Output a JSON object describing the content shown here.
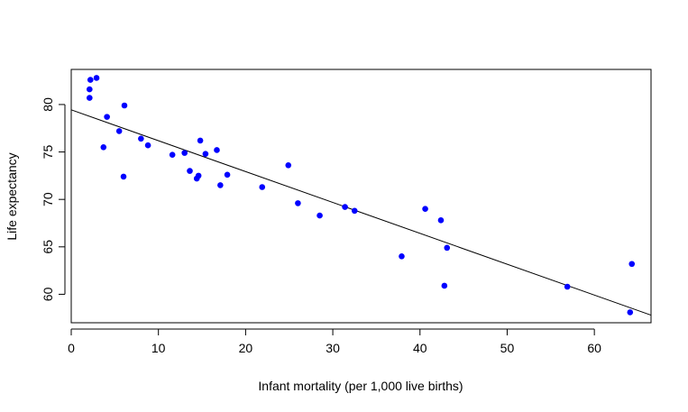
{
  "chart_data": {
    "type": "scatter",
    "title": "",
    "xlabel": "Infant mortality (per 1,000 live births)",
    "ylabel": "Life expectancy",
    "xlim": [
      0,
      66.5
    ],
    "ylim": [
      57,
      83.7
    ],
    "x_ticks": [
      0,
      10,
      20,
      30,
      40,
      50,
      60
    ],
    "y_ticks": [
      60,
      65,
      70,
      75,
      80
    ],
    "grid": false,
    "point_color": "#0000ff",
    "line_color": "#000000",
    "points": [
      {
        "x": 2.2,
        "y": 82.6
      },
      {
        "x": 2.9,
        "y": 82.8
      },
      {
        "x": 2.1,
        "y": 81.6
      },
      {
        "x": 2.1,
        "y": 80.7
      },
      {
        "x": 6.1,
        "y": 79.9
      },
      {
        "x": 4.1,
        "y": 78.7
      },
      {
        "x": 5.5,
        "y": 77.2
      },
      {
        "x": 8.0,
        "y": 76.4
      },
      {
        "x": 3.7,
        "y": 75.5
      },
      {
        "x": 8.8,
        "y": 75.7
      },
      {
        "x": 14.8,
        "y": 76.2
      },
      {
        "x": 16.7,
        "y": 75.2
      },
      {
        "x": 11.6,
        "y": 74.7
      },
      {
        "x": 13.0,
        "y": 74.9
      },
      {
        "x": 15.4,
        "y": 74.8
      },
      {
        "x": 13.6,
        "y": 73.0
      },
      {
        "x": 24.9,
        "y": 73.6
      },
      {
        "x": 6.0,
        "y": 72.4
      },
      {
        "x": 14.4,
        "y": 72.2
      },
      {
        "x": 14.6,
        "y": 72.5
      },
      {
        "x": 17.9,
        "y": 72.6
      },
      {
        "x": 17.1,
        "y": 71.5
      },
      {
        "x": 21.9,
        "y": 71.3
      },
      {
        "x": 26.0,
        "y": 69.6
      },
      {
        "x": 28.5,
        "y": 68.3
      },
      {
        "x": 31.4,
        "y": 69.2
      },
      {
        "x": 32.5,
        "y": 68.8
      },
      {
        "x": 40.6,
        "y": 69.0
      },
      {
        "x": 42.4,
        "y": 67.8
      },
      {
        "x": 43.1,
        "y": 64.9
      },
      {
        "x": 37.9,
        "y": 64.0
      },
      {
        "x": 42.8,
        "y": 60.9
      },
      {
        "x": 56.9,
        "y": 60.8
      },
      {
        "x": 64.3,
        "y": 63.2
      },
      {
        "x": 64.1,
        "y": 58.1
      }
    ],
    "regression_line": {
      "x": [
        0,
        66.5
      ],
      "y": [
        79.44,
        57.8
      ]
    }
  }
}
